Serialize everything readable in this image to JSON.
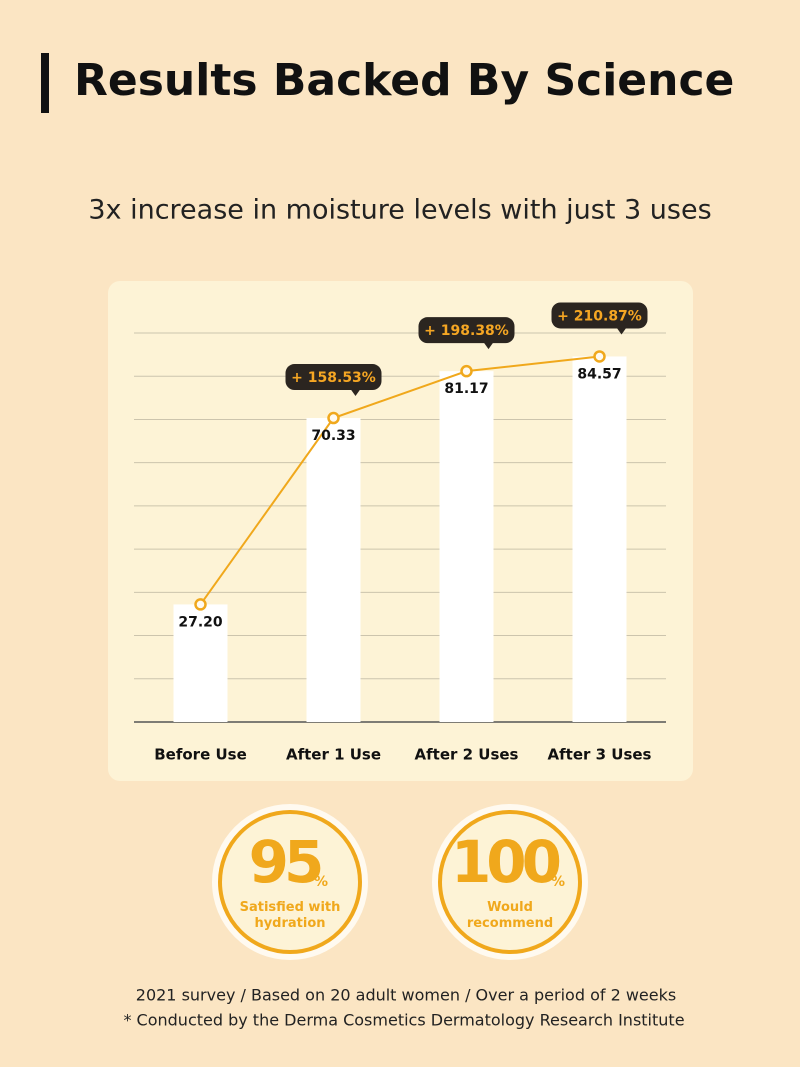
{
  "header": {
    "title": "Results Backed By Science",
    "subtitle": "3x increase in moisture levels with just 3 uses"
  },
  "chart_data": {
    "type": "bar",
    "categories": [
      "Before Use",
      "After 1 Use",
      "After 2 Uses",
      "After 3 Uses"
    ],
    "values": [
      27.2,
      70.33,
      81.17,
      84.57
    ],
    "value_labels": [
      "27.20",
      "70.33",
      "81.17",
      "84.57"
    ],
    "annotations": [
      null,
      "+ 158.53%",
      "+ 198.38%",
      "+ 210.87%"
    ],
    "color": "#ffffff",
    "line_color": "#f0a81c",
    "ylim": [
      0,
      90
    ],
    "yticks": [
      10,
      20,
      30,
      40,
      50,
      60,
      70,
      80,
      90
    ],
    "show_ytick_labels": false,
    "grid": true
  },
  "badges": [
    {
      "value": "95",
      "unit": "%",
      "label": "Satisfied with hydration"
    },
    {
      "value": "100",
      "unit": "%",
      "label": "Would recommend"
    }
  ],
  "footnotes": [
    "2021 survey / Based on 20 adult women / Over a period of 2 weeks",
    "* Conducted by the Derma Cosmetics Dermatology Research Institute"
  ]
}
